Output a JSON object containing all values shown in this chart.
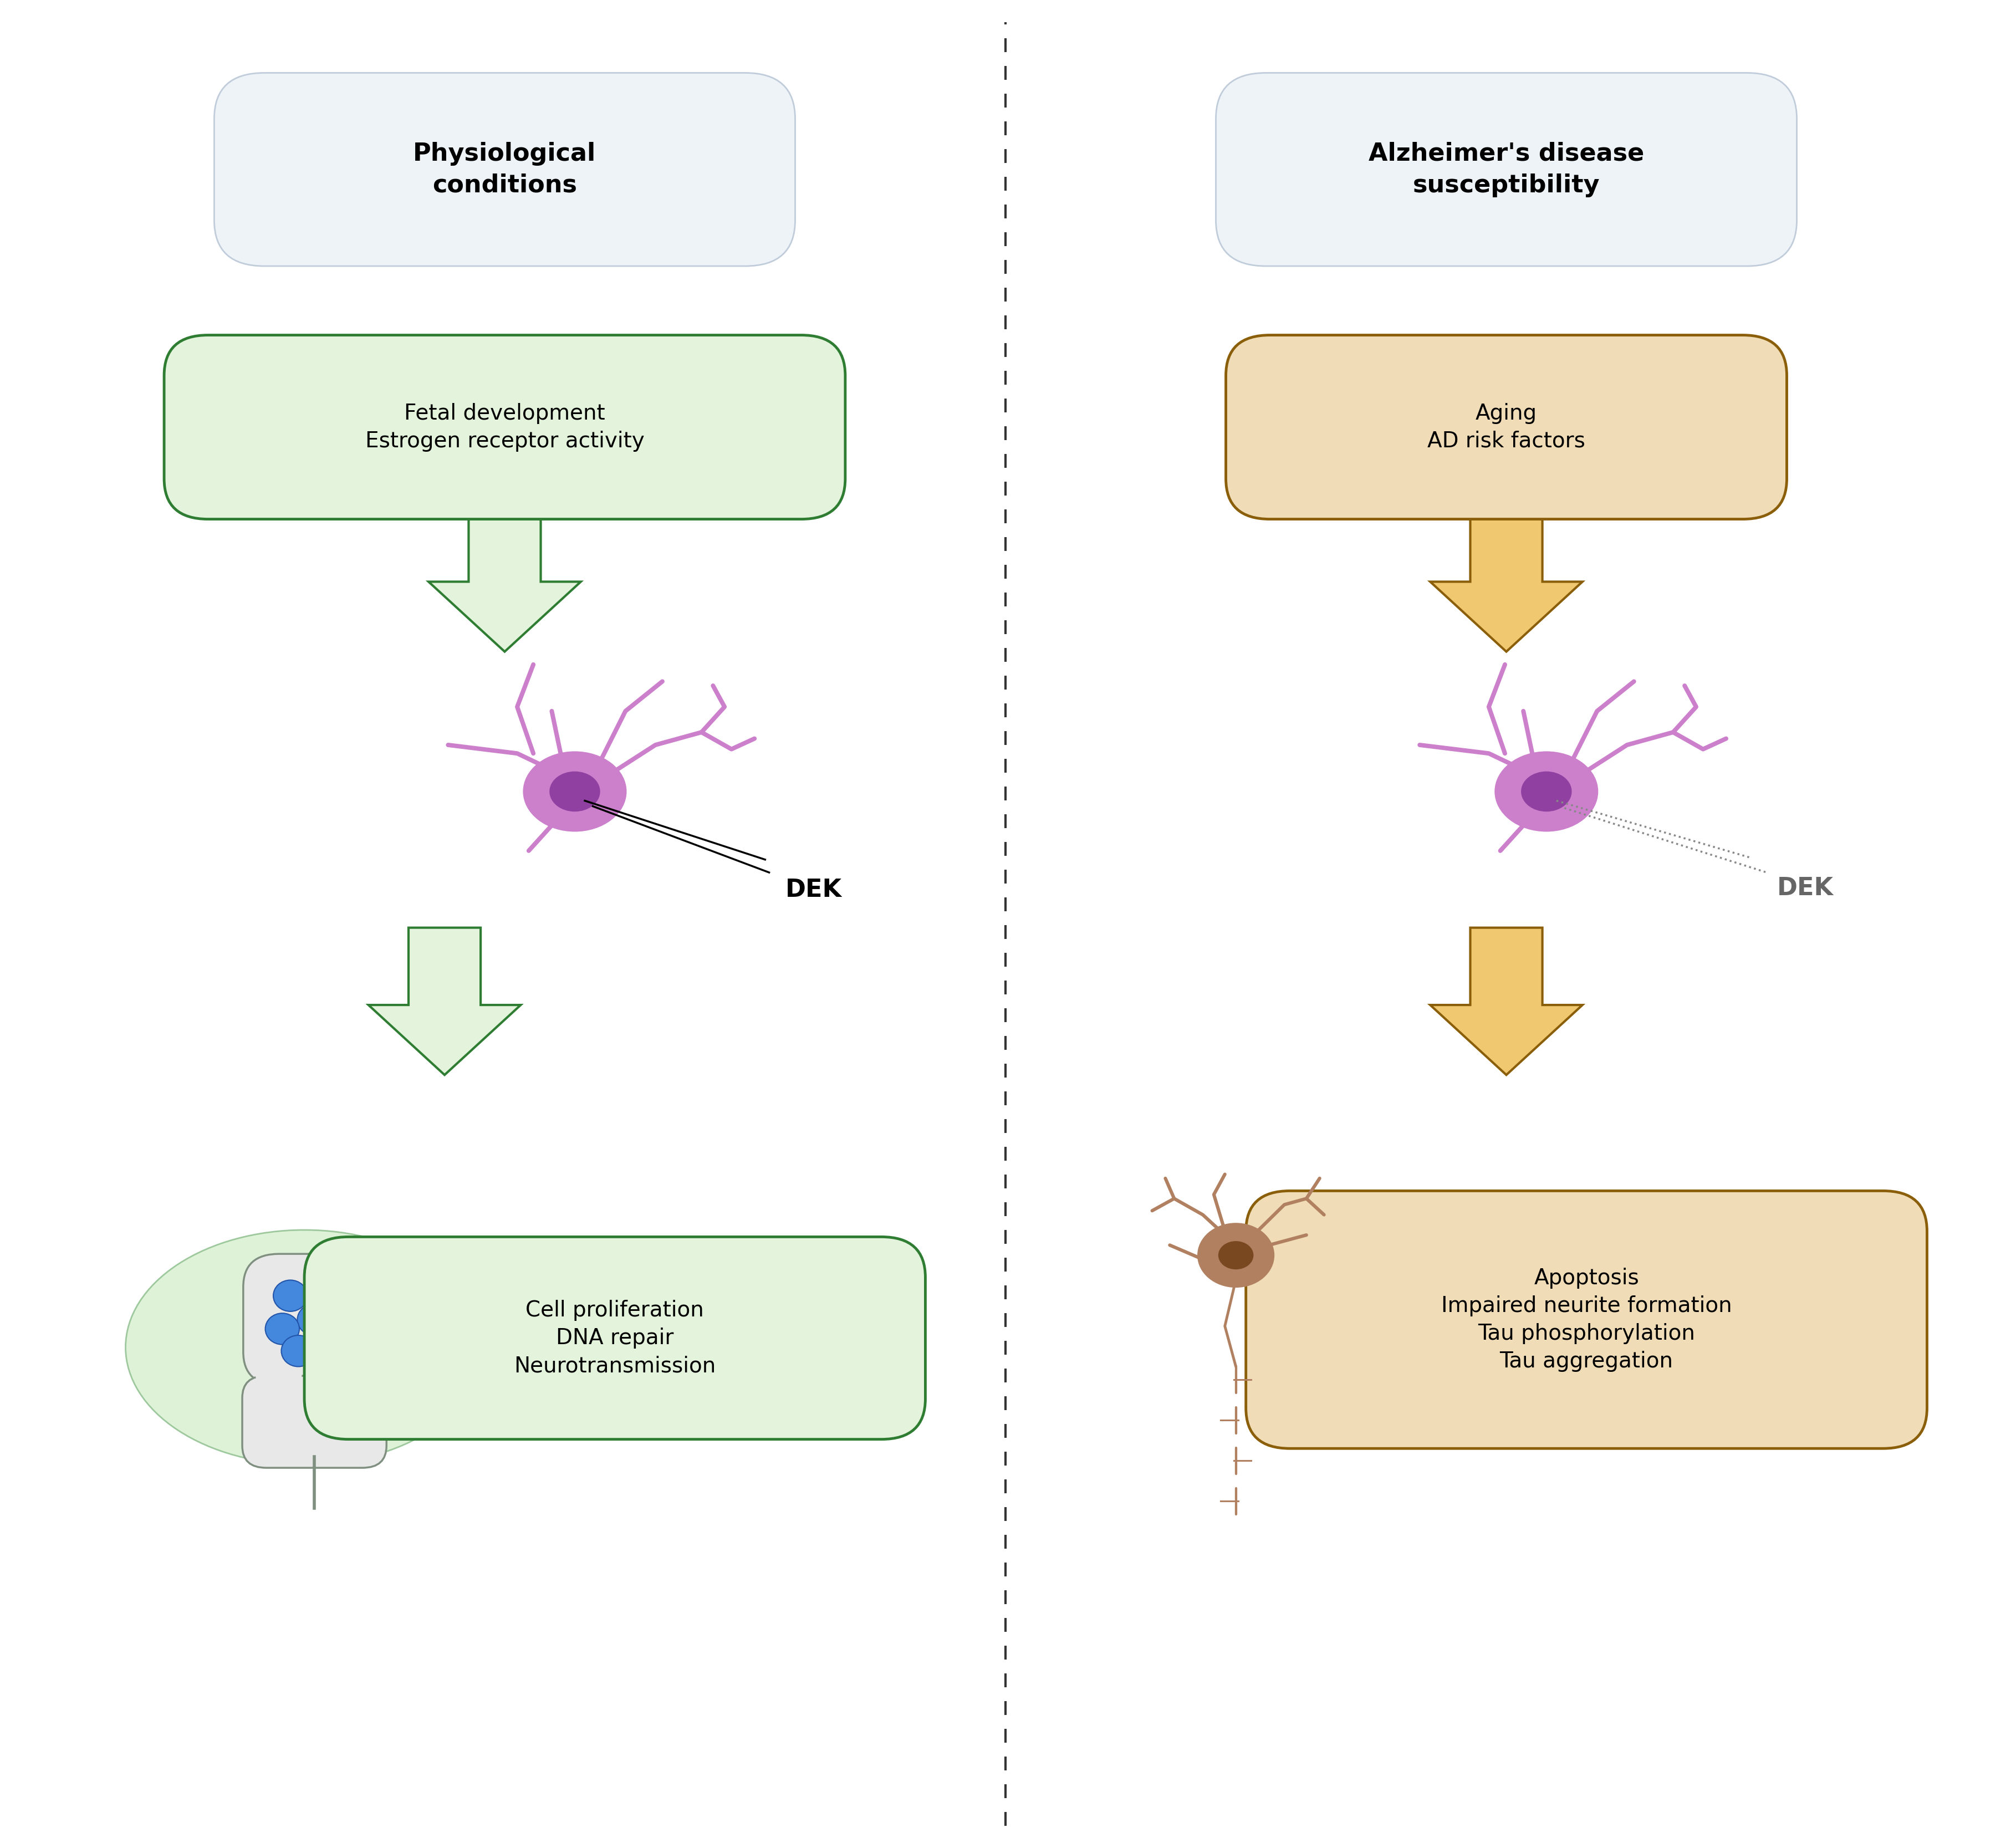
{
  "fig_width": 36.28,
  "fig_height": 33.34,
  "background_color": "#ffffff",
  "left_title": "Physiological\nconditions",
  "right_title": "Alzheimer's disease\nsusceptibility",
  "title_box_bg": "#eef3f8",
  "title_box_edge": "#c0ccda",
  "left_box1_text": "Fetal development\nEstrogen receptor activity",
  "left_box1_bg": "#e4f4dc",
  "left_box1_edge": "#2e7d32",
  "left_box2_text": "Cell proliferation\nDNA repair\nNeurotransmission",
  "left_box2_bg": "#e4f4dc",
  "left_box2_edge": "#2e7d32",
  "left_arrow_fill": "#e4f4dc",
  "left_arrow_edge": "#2e7d32",
  "right_box1_text": "Aging\nAD risk factors",
  "right_box1_bg": "#f0ddb8",
  "right_box1_edge": "#8b5e0a",
  "right_box2_text": "Apoptosis\nImpaired neurite formation\nTau phosphorylation\nTau aggregation",
  "right_box2_bg": "#f0ddb8",
  "right_box2_edge": "#8b5e0a",
  "right_arrow_fill": "#f0c870",
  "right_arrow_edge": "#8b5e0a",
  "neuron_body_color": "#cc80cc",
  "neuron_nucleus_color": "#9040a0",
  "neuron_dendrite_color": "#cc80cc",
  "deg_body_color": "#b08060",
  "deg_nucleus_color": "#7a4820",
  "deg_dendrite_color": "#b08060",
  "synapse_bg": "#d8f0d0",
  "synapse_edge": "#90c090",
  "synapse_vesicle_fill": "#4488dd",
  "synapse_vesicle_edge": "#2255aa",
  "synapse_terminal_fill": "#e8e8e8",
  "synapse_terminal_edge": "#809080",
  "dek_label_left": "DEK",
  "dek_label_right": "DEK",
  "divider_color": "#333333"
}
